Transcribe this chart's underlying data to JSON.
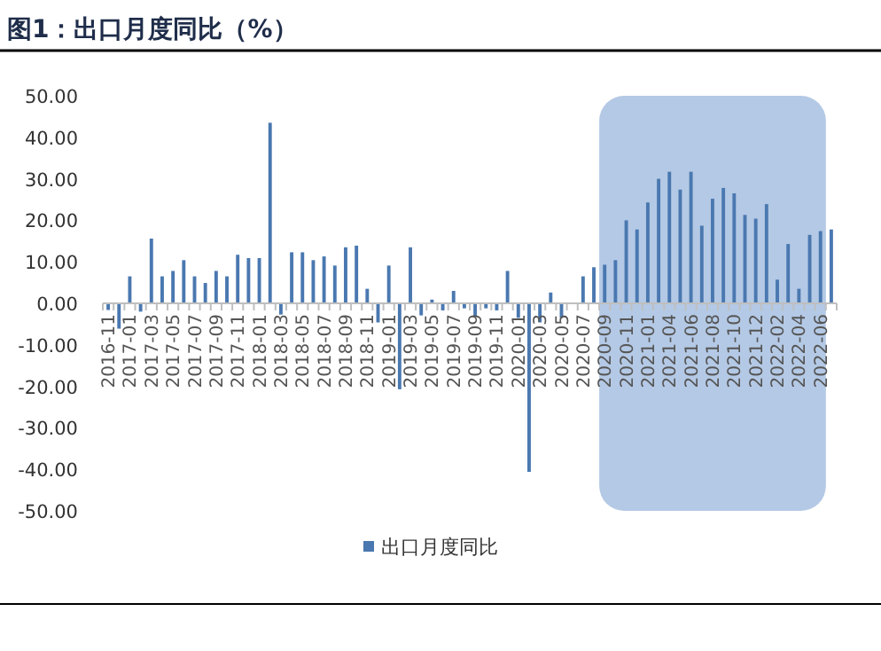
{
  "chart_data": {
    "type": "bar",
    "title": "图1：出口月度同比（%）",
    "categories": [
      "2016-11",
      null,
      "2017-01",
      null,
      "2017-03",
      null,
      "2017-05",
      null,
      "2017-07",
      null,
      "2017-09",
      null,
      "2017-11",
      null,
      "2018-01",
      null,
      "2018-03",
      null,
      "2018-05",
      null,
      "2018-07",
      null,
      "2018-09",
      null,
      "2018-11",
      null,
      "2019-01",
      null,
      "2019-03",
      null,
      "2019-05",
      null,
      "2019-07",
      null,
      "2019-09",
      null,
      "2019-11",
      null,
      "2020-01",
      null,
      "2020-03",
      null,
      "2020-05",
      null,
      "2020-07",
      null,
      "2020-09",
      null,
      "2020-11",
      null,
      "2021-01",
      null,
      "2021-04",
      null,
      "2021-06",
      null,
      "2021-08",
      null,
      "2021-10",
      null,
      "2021-12",
      null,
      "2022-02",
      null,
      "2022-04",
      null,
      "2022-06",
      null
    ],
    "series": [
      {
        "name": "出口月度同比",
        "color": "#4a78b0",
        "values": [
          -1.6,
          -6.1,
          6.5,
          -2.0,
          15.6,
          6.5,
          7.8,
          10.4,
          6.5,
          4.9,
          7.8,
          6.5,
          11.7,
          10.9,
          10.9,
          43.5,
          -2.7,
          12.3,
          12.3,
          10.4,
          11.3,
          9.1,
          13.5,
          13.9,
          3.5,
          -4.6,
          9.1,
          -20.7,
          13.5,
          -2.9,
          0.9,
          -1.7,
          3.0,
          -1.2,
          -3.2,
          -1.2,
          -1.7,
          7.8,
          -3.5,
          -40.6,
          -4.6,
          2.6,
          -3.5,
          null,
          6.5,
          8.7,
          9.3,
          10.4,
          20.0,
          17.8,
          24.3,
          30.0,
          31.7,
          27.4,
          31.7,
          18.7,
          25.2,
          27.8,
          26.5,
          21.3,
          20.4,
          23.9,
          5.7,
          14.3,
          3.5,
          16.5,
          17.4,
          17.8
        ]
      }
    ],
    "ylim": [
      -50,
      50
    ],
    "yticks": [
      {
        "value": -50,
        "label": "-50.00"
      },
      {
        "value": -40,
        "label": "-40.00"
      },
      {
        "value": -30,
        "label": "-30.00"
      },
      {
        "value": -20,
        "label": "-20.00"
      },
      {
        "value": -10,
        "label": "-10.00"
      },
      {
        "value": 0,
        "label": "0.00"
      },
      {
        "value": 10,
        "label": "10.00"
      },
      {
        "value": 20,
        "label": "20.00"
      },
      {
        "value": 30,
        "label": "30.00"
      },
      {
        "value": 40,
        "label": "40.00"
      },
      {
        "value": 50,
        "label": "50.00"
      }
    ],
    "bands": [
      {
        "axis": "x",
        "from": "2020-09",
        "to": "2022-06",
        "color": "#b4c9e5"
      }
    ],
    "grid": false,
    "legend": "bottom"
  }
}
